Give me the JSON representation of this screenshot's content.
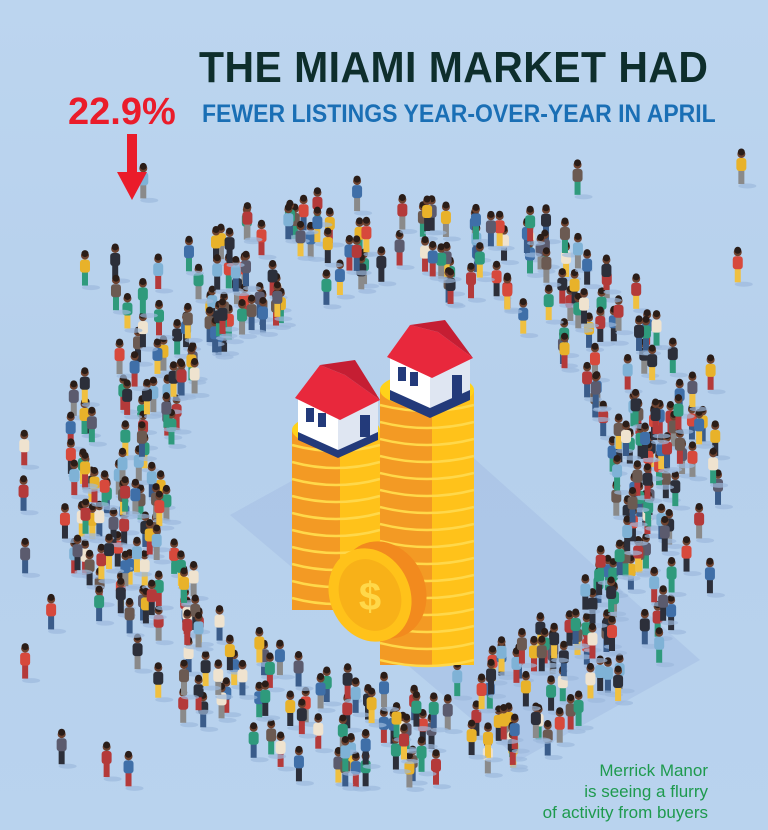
{
  "headline": {
    "line1": "THE MIAMI MARKET HAD",
    "stat_value": "22.9%",
    "line2": "FEWER LISTINGS YEAR-OVER-YEAR IN APRIL"
  },
  "indicator": {
    "icon": "down-arrow-icon",
    "color": "#ea1c2a"
  },
  "illustration": {
    "subject": "coin-stacks-with-houses",
    "coin_symbol": "$",
    "surrounded_by": "crowd-ring"
  },
  "caption": {
    "lines": [
      "Merrick Manor",
      "is seeing a flurry",
      "of activity from buyers"
    ]
  },
  "colors": {
    "background": "#b9d3ee",
    "title": "#0e2e2c",
    "stat": "#ea1c2a",
    "subtitle": "#1a6fb5",
    "caption": "#1e9a4e",
    "roof": "#e8283c",
    "coin_light": "#ffd21a",
    "coin_dark": "#f28a1e"
  }
}
